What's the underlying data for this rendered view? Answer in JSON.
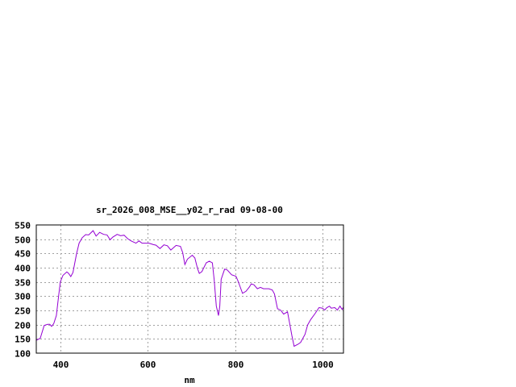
{
  "chart_data": {
    "type": "line",
    "title": "sr_2026_008_MSE__y02_r_rad 09-08-00",
    "xlabel": "nm",
    "ylabel": "",
    "xlim": [
      345,
      1048
    ],
    "ylim": [
      100,
      550
    ],
    "xticks": [
      400,
      600,
      800,
      1000
    ],
    "yticks": [
      100,
      150,
      200,
      250,
      300,
      350,
      400,
      450,
      500,
      550
    ],
    "grid": true,
    "line_color": "#9400d3",
    "series": [
      {
        "x": [
          345,
          354,
          363,
          371,
          376,
          380,
          385,
          391,
          396,
          400,
          406,
          415,
          419,
          424,
          429,
          437,
          443,
          450,
          458,
          465,
          475,
          482,
          490,
          499,
          507,
          514,
          520,
          530,
          538,
          546,
          554,
          563,
          573,
          580,
          587,
          594,
          603,
          613,
          619,
          628,
          637,
          645,
          653,
          665,
          675,
          680,
          685,
          691,
          702,
          708,
          714,
          718,
          724,
          734,
          741,
          748,
          752,
          757,
          762,
          765,
          768,
          776,
          782,
          792,
          802,
          807,
          817,
          825,
          833,
          837,
          843,
          851,
          858,
          865,
          877,
          885,
          890,
          897,
          904,
          911,
          920,
          925,
          930,
          935,
          944,
          950,
          960,
          966,
          973,
          983,
          992,
          1000,
          1005,
          1010,
          1016,
          1020,
          1028,
          1034,
          1040,
          1045,
          1048
        ],
        "y": [
          145,
          152,
          197,
          201,
          201,
          194,
          204,
          232,
          298,
          350,
          373,
          385,
          380,
          369,
          383,
          448,
          486,
          505,
          516,
          515,
          530,
          511,
          524,
          517,
          515,
          498,
          507,
          517,
          512,
          514,
          502,
          493,
          486,
          494,
          486,
          486,
          486,
          481,
          479,
          467,
          480,
          477,
          462,
          478,
          475,
          453,
          411,
          430,
          444,
          434,
          397,
          380,
          386,
          417,
          423,
          417,
          359,
          265,
          232,
          265,
          359,
          395,
          392,
          375,
          370,
          352,
          310,
          317,
          333,
          343,
          340,
          326,
          331,
          326,
          326,
          322,
          308,
          256,
          251,
          237,
          245,
          204,
          162,
          124,
          131,
          138,
          166,
          199,
          218,
          239,
          260,
          258,
          251,
          260,
          265,
          258,
          260,
          251,
          265,
          253,
          262
        ]
      }
    ]
  }
}
